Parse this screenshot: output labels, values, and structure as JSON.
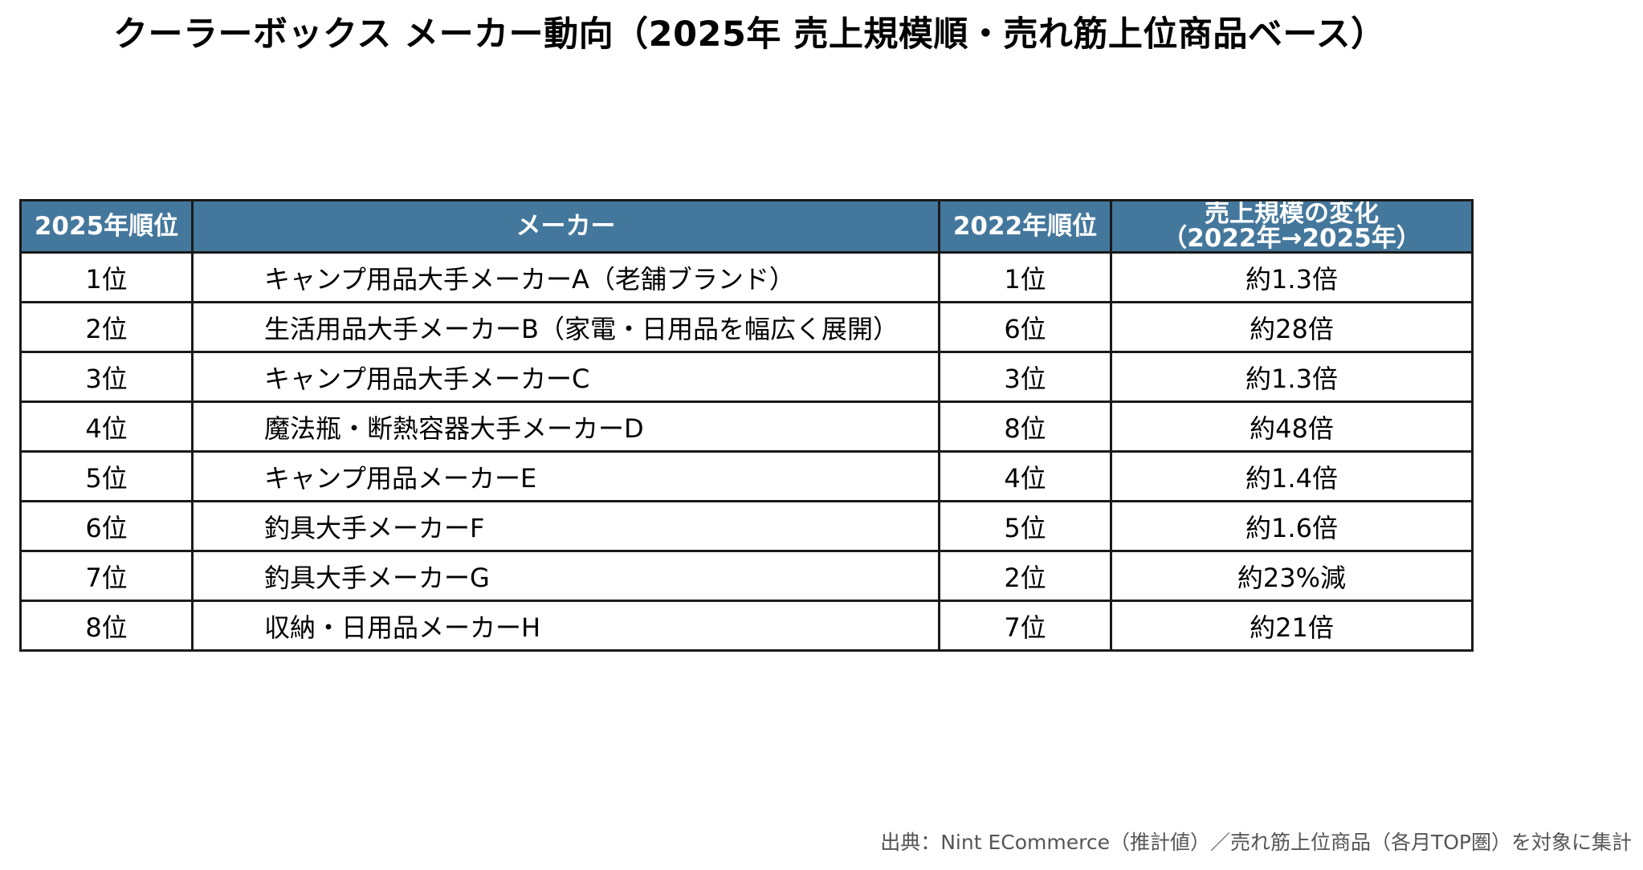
{
  "title": "クーラーボックス メーカー動向（2025年 売上規模順・売れ筋上位商品ベース）",
  "table": {
    "headers": {
      "rank_2025": "2025年順位",
      "maker": "メーカー",
      "rank_2022": "2022年順位",
      "change_line1": "売上規模の変化",
      "change_line2": "（2022年→2025年）"
    },
    "rows": [
      {
        "rank_2025": "1位",
        "maker": "キャンプ用品大手メーカーA（老舗ブランド）",
        "rank_2022": "1位",
        "change": "約1.3倍"
      },
      {
        "rank_2025": "2位",
        "maker": "生活用品大手メーカーB（家電・日用品を幅広く展開）",
        "rank_2022": "6位",
        "change": "約28倍"
      },
      {
        "rank_2025": "3位",
        "maker": "キャンプ用品大手メーカーC",
        "rank_2022": "3位",
        "change": "約1.3倍"
      },
      {
        "rank_2025": "4位",
        "maker": "魔法瓶・断熱容器大手メーカーD",
        "rank_2022": "8位",
        "change": "約48倍"
      },
      {
        "rank_2025": "5位",
        "maker": "キャンプ用品メーカーE",
        "rank_2022": "4位",
        "change": "約1.4倍"
      },
      {
        "rank_2025": "6位",
        "maker": "釣具大手メーカーF",
        "rank_2022": "5位",
        "change": "約1.6倍"
      },
      {
        "rank_2025": "7位",
        "maker": "釣具大手メーカーG",
        "rank_2022": "2位",
        "change": "約23%減"
      },
      {
        "rank_2025": "8位",
        "maker": "収納・日用品メーカーH",
        "rank_2022": "7位",
        "change": "約21倍"
      }
    ]
  },
  "source": "出典：Nint ECommerce（推計値）／売れ筋上位商品（各月TOP圏）を対象に集計",
  "colors": {
    "header_background": "#44779c",
    "header_text": "#ffffff",
    "border": "#1a1a1a"
  }
}
